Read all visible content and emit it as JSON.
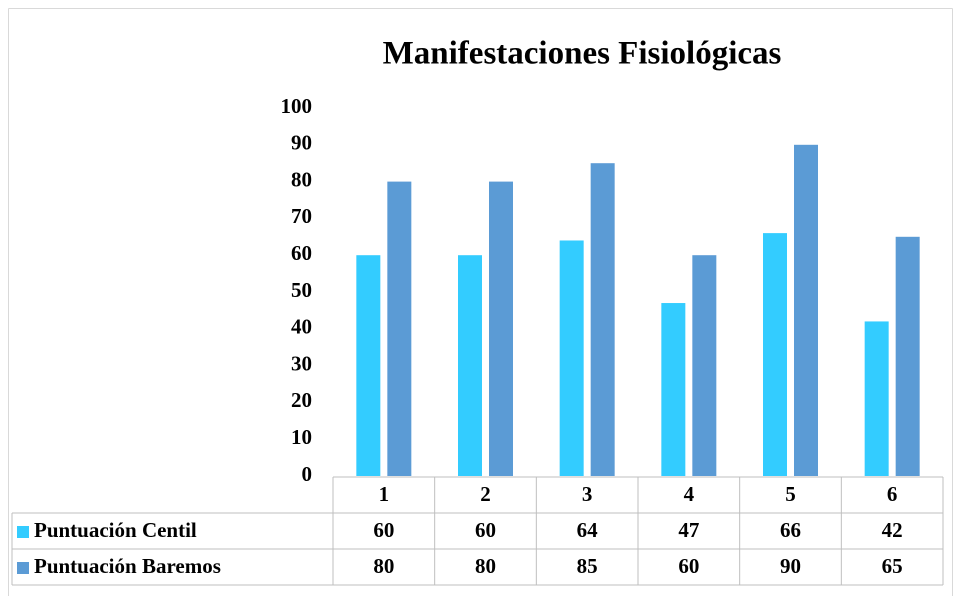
{
  "chart_data": {
    "type": "bar",
    "title": "Manifestaciones Fisiológicas",
    "categories": [
      "1",
      "2",
      "3",
      "4",
      "5",
      "6"
    ],
    "series": [
      {
        "name": "Puntuación Centil",
        "color": "#33ccff",
        "values": [
          60,
          60,
          64,
          47,
          66,
          42
        ]
      },
      {
        "name": "Puntuación Baremos",
        "color": "#5b9bd5",
        "values": [
          80,
          80,
          85,
          60,
          90,
          65
        ]
      }
    ],
    "ylim": [
      0,
      100
    ],
    "yticks": [
      0,
      10,
      20,
      30,
      40,
      50,
      60,
      70,
      80,
      90,
      100
    ],
    "grid": false
  }
}
